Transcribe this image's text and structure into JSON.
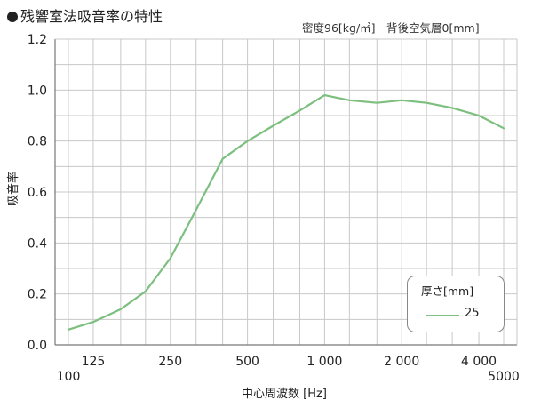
{
  "title": "残響室法吸音率の特性",
  "subtitle": "密度96[kg/㎥]　背後空気層0[mm]",
  "colors": {
    "line": "#7dbf7f",
    "grid": "#c8c8c8",
    "axis": "#777777"
  },
  "chart_data": {
    "type": "line",
    "title": "残響室法吸音率の特性",
    "xlabel": "中心周波数 [Hz]",
    "ylabel": "吸音率",
    "x_scale": "log",
    "xlim": [
      100,
      5000
    ],
    "ylim": [
      0,
      1.2
    ],
    "grid": true,
    "legend_title": "厚さ[mm]",
    "legend_position": "bottom-right",
    "x": [
      100,
      125,
      160,
      200,
      250,
      315,
      400,
      500,
      630,
      800,
      1000,
      1250,
      1600,
      2000,
      2500,
      3150,
      4000,
      5000
    ],
    "series": [
      {
        "name": "25",
        "values": [
          0.06,
          0.09,
          0.14,
          0.21,
          0.34,
          0.53,
          0.73,
          0.8,
          0.86,
          0.92,
          0.98,
          0.96,
          0.95,
          0.96,
          0.95,
          0.93,
          0.9,
          0.85
        ]
      }
    ],
    "y_ticks": [
      {
        "v": 0,
        "label": "0.0"
      },
      {
        "v": 0.2,
        "label": "0.2"
      },
      {
        "v": 0.4,
        "label": "0.4"
      },
      {
        "v": 0.6,
        "label": "0.6"
      },
      {
        "v": 0.8,
        "label": "0.8"
      },
      {
        "v": 1.0,
        "label": "1.0"
      },
      {
        "v": 1.2,
        "label": "1.2"
      }
    ],
    "x_ticks_upper": [
      {
        "v": 125,
        "label": "125"
      },
      {
        "v": 250,
        "label": "250"
      },
      {
        "v": 500,
        "label": "500"
      },
      {
        "v": 1000,
        "label": "1 000"
      },
      {
        "v": 2000,
        "label": "2 000"
      },
      {
        "v": 4000,
        "label": "4 000"
      }
    ],
    "x_ticks_lower": [
      {
        "v": 100,
        "label": "100"
      },
      {
        "v": 5000,
        "label": "5000"
      }
    ]
  }
}
